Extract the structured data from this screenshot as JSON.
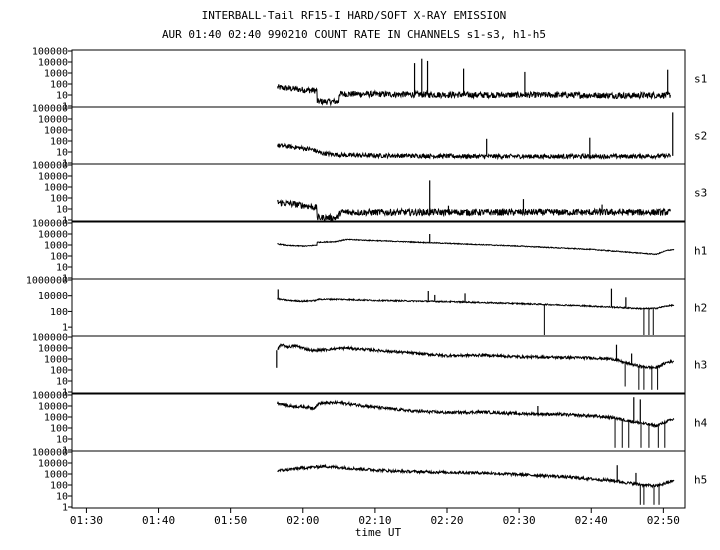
{
  "chart_data": {
    "type": "line",
    "title": "INTERBALL-Tail RF15-I HARD/SOFT X-RAY EMISSION",
    "subtitle": "AUR 01:40 02:40 990210  COUNT RATE IN CHANNELS s1-s3, h1-h5",
    "xlabel": "time UT",
    "x_ticks": [
      "01:30",
      "01:40",
      "01:50",
      "02:00",
      "02:10",
      "02:20",
      "02:30",
      "02:40",
      "02:50"
    ],
    "x_range_min": [
      88,
      173
    ],
    "y_scale": "log",
    "panels": [
      {
        "name": "s1",
        "ylim_exp": [
          0,
          5
        ],
        "yticks": [
          "1",
          "10",
          "100",
          "1000",
          "10000",
          "100000"
        ],
        "baseline": [
          [
            116.5,
            1.7
          ],
          [
            118,
            1.6
          ],
          [
            120.5,
            1.45
          ],
          [
            122,
            1.4
          ],
          [
            122.3,
            0.4
          ],
          [
            125,
            0.4
          ],
          [
            125.3,
            1.1
          ],
          [
            135,
            1.05
          ],
          [
            145,
            1.0
          ],
          [
            155,
            1.0
          ],
          [
            165,
            0.95
          ],
          [
            171,
            1.0
          ]
        ],
        "noise": 0.28,
        "spikes": [
          [
            135.5,
            3.9
          ],
          [
            136.5,
            4.3
          ],
          [
            137.3,
            4.1
          ],
          [
            142.3,
            3.4
          ],
          [
            150.8,
            3.1
          ],
          [
            163.8,
            1.2
          ],
          [
            170.6,
            3.3
          ]
        ]
      },
      {
        "name": "s2",
        "ylim_exp": [
          0,
          5
        ],
        "yticks": [
          "1",
          "10",
          "100",
          "1000",
          "10000",
          "100000"
        ],
        "baseline": [
          [
            116.5,
            1.6
          ],
          [
            118,
            1.5
          ],
          [
            120.5,
            1.3
          ],
          [
            121.5,
            1.2
          ],
          [
            122.5,
            0.9
          ],
          [
            124,
            0.8
          ],
          [
            126,
            0.7
          ],
          [
            135,
            0.65
          ],
          [
            145,
            0.6
          ],
          [
            155,
            0.6
          ],
          [
            165,
            0.6
          ],
          [
            171,
            0.65
          ]
        ],
        "noise": 0.2,
        "spikes": [
          [
            145.5,
            2.2
          ],
          [
            159.8,
            2.3
          ],
          [
            171.3,
            4.6
          ]
        ]
      },
      {
        "name": "s3",
        "ylim_exp": [
          0,
          5
        ],
        "yticks": [
          "1",
          "10",
          "100",
          "1000",
          "10000",
          "100000"
        ],
        "baseline": [
          [
            116.5,
            1.6
          ],
          [
            118,
            1.5
          ],
          [
            120.5,
            1.3
          ],
          [
            122,
            1.1
          ],
          [
            122.3,
            0.2
          ],
          [
            124.8,
            0.2
          ],
          [
            125.2,
            0.7
          ],
          [
            135,
            0.7
          ],
          [
            145,
            0.7
          ],
          [
            155,
            0.7
          ],
          [
            165,
            0.7
          ],
          [
            171,
            0.7
          ]
        ],
        "noise": 0.3,
        "spikes": [
          [
            137.6,
            3.6
          ],
          [
            150.6,
            1.9
          ],
          [
            140.2,
            1.3
          ],
          [
            161.5,
            1.4
          ]
        ]
      },
      {
        "name": "h1",
        "ylim_exp": [
          0,
          5
        ],
        "yticks": [
          "1",
          "10",
          "100",
          "1000",
          "10000",
          "100000"
        ],
        "baseline": [
          [
            116.5,
            3.1
          ],
          [
            118,
            2.95
          ],
          [
            120.5,
            2.9
          ],
          [
            122,
            3.0
          ],
          [
            122.3,
            3.25
          ],
          [
            124.5,
            3.3
          ],
          [
            126,
            3.5
          ],
          [
            130,
            3.4
          ],
          [
            140,
            3.15
          ],
          [
            150,
            2.9
          ],
          [
            160,
            2.6
          ],
          [
            165,
            2.35
          ],
          [
            169,
            2.15
          ],
          [
            170.5,
            2.5
          ],
          [
            171.5,
            2.6
          ]
        ],
        "noise": 0.04,
        "spikes": [
          [
            137.6,
            4.0
          ]
        ]
      },
      {
        "name": "h2",
        "ylim_exp": [
          -1,
          6
        ],
        "yticks": [
          "1",
          "100",
          "10000",
          "1000000"
        ],
        "tick_exps": [
          0,
          2,
          4,
          6
        ],
        "baseline": [
          [
            116.5,
            3.6
          ],
          [
            118,
            3.4
          ],
          [
            120,
            3.3
          ],
          [
            122,
            3.4
          ],
          [
            122.3,
            3.55
          ],
          [
            125,
            3.55
          ],
          [
            130,
            3.4
          ],
          [
            140,
            3.25
          ],
          [
            150,
            3.0
          ],
          [
            158,
            2.75
          ],
          [
            163,
            2.55
          ],
          [
            167,
            2.35
          ],
          [
            169,
            2.4
          ],
          [
            170.5,
            2.7
          ],
          [
            171.5,
            2.8
          ]
        ],
        "noise": 0.08,
        "spikes": [
          [
            116.6,
            4.8
          ],
          [
            137.4,
            4.6
          ],
          [
            138.3,
            4.1
          ],
          [
            142.5,
            4.3
          ],
          [
            162.8,
            4.9
          ],
          [
            164.8,
            3.8
          ]
        ],
        "dips": [
          [
            153.5,
            -1
          ],
          [
            167.3,
            -1
          ],
          [
            168,
            -1
          ],
          [
            168.6,
            -1
          ]
        ]
      },
      {
        "name": "h3",
        "ylim_exp": [
          0,
          5
        ],
        "yticks": [
          "1",
          "10",
          "100",
          "1000",
          "10000",
          "100000"
        ],
        "baseline": [
          [
            116.5,
            3.8
          ],
          [
            117,
            4.3
          ],
          [
            118,
            4.1
          ],
          [
            119,
            4.2
          ],
          [
            120.5,
            3.9
          ],
          [
            121.5,
            3.75
          ],
          [
            124,
            3.9
          ],
          [
            126,
            4.0
          ],
          [
            130,
            3.8
          ],
          [
            135,
            3.55
          ],
          [
            140,
            3.3
          ],
          [
            145,
            3.35
          ],
          [
            150,
            3.2
          ],
          [
            155,
            3.15
          ],
          [
            160,
            3.1
          ],
          [
            163,
            3.0
          ],
          [
            165,
            2.6
          ],
          [
            167,
            2.3
          ],
          [
            169,
            2.2
          ],
          [
            170.5,
            2.7
          ],
          [
            171.5,
            2.8
          ]
        ],
        "noise": 0.12,
        "spikes": [
          [
            116.4,
            2.2
          ],
          [
            163.5,
            4.3
          ],
          [
            165.6,
            3.5
          ]
        ],
        "dips": [
          [
            164.7,
            0.5
          ],
          [
            166.6,
            0.2
          ],
          [
            167.3,
            0.2
          ],
          [
            168.4,
            0.2
          ],
          [
            169.2,
            0.2
          ]
        ]
      },
      {
        "name": "h4",
        "ylim_exp": [
          0,
          5
        ],
        "yticks": [
          "1",
          "10",
          "100",
          "1000",
          "10000",
          "100000"
        ],
        "baseline": [
          [
            116.5,
            4.3
          ],
          [
            118,
            4.0
          ],
          [
            120.5,
            3.9
          ],
          [
            121.5,
            3.8
          ],
          [
            122.3,
            4.25
          ],
          [
            125,
            4.3
          ],
          [
            130,
            3.9
          ],
          [
            135,
            3.55
          ],
          [
            140,
            3.4
          ],
          [
            145,
            3.45
          ],
          [
            150,
            3.3
          ],
          [
            155,
            3.25
          ],
          [
            160,
            3.1
          ],
          [
            163,
            2.95
          ],
          [
            166,
            2.55
          ],
          [
            169,
            2.2
          ],
          [
            170.5,
            2.6
          ],
          [
            171.5,
            2.8
          ]
        ],
        "noise": 0.13,
        "spikes": [
          [
            152.6,
            4.0
          ],
          [
            165.9,
            4.8
          ],
          [
            166.8,
            4.6
          ]
        ],
        "dips": [
          [
            163.3,
            0.2
          ],
          [
            164.3,
            0.2
          ],
          [
            165.2,
            0.2
          ],
          [
            166.9,
            0.2
          ],
          [
            168,
            0.2
          ],
          [
            169.3,
            0.2
          ],
          [
            170.2,
            0.2
          ]
        ]
      },
      {
        "name": "h5",
        "ylim_exp": [
          0,
          5
        ],
        "yticks": [
          "1",
          "10",
          "100",
          "1000",
          "10000",
          "100000"
        ],
        "baseline": [
          [
            116.5,
            3.3
          ],
          [
            118,
            3.4
          ],
          [
            120,
            3.55
          ],
          [
            123,
            3.7
          ],
          [
            125,
            3.6
          ],
          [
            128,
            3.45
          ],
          [
            133,
            3.25
          ],
          [
            140,
            3.15
          ],
          [
            145,
            3.1
          ],
          [
            150,
            2.95
          ],
          [
            155,
            2.8
          ],
          [
            160,
            2.55
          ],
          [
            163,
            2.4
          ],
          [
            166,
            2.1
          ],
          [
            169,
            1.9
          ],
          [
            170.5,
            2.2
          ],
          [
            171.5,
            2.4
          ]
        ],
        "noise": 0.13,
        "spikes": [
          [
            163.6,
            3.8
          ],
          [
            166.2,
            3.1
          ]
        ],
        "dips": [
          [
            166.8,
            0.2
          ],
          [
            167.3,
            0.2
          ],
          [
            168.7,
            0.2
          ],
          [
            169.4,
            0.2
          ]
        ]
      }
    ]
  }
}
